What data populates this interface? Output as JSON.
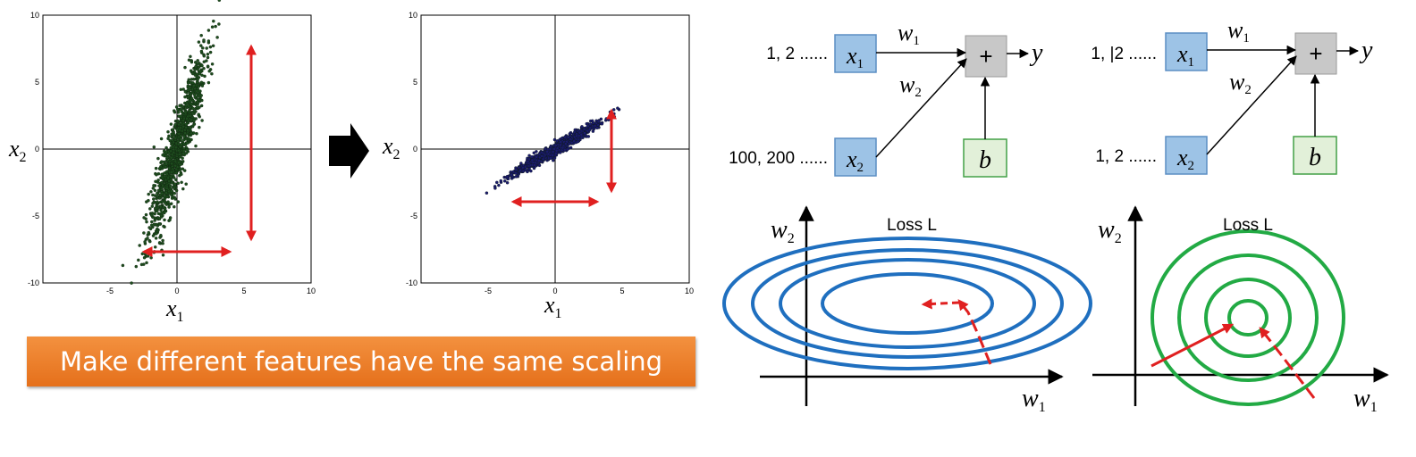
{
  "scatter_plots": [
    {
      "tick_labels": [
        "10",
        "5",
        "0",
        "-5",
        "-10",
        "-5",
        "0",
        "5",
        "10"
      ],
      "x_label": "x",
      "x_sub": "1",
      "y_label": "x",
      "y_sub": "2",
      "point_color": "#1e4d1e"
    },
    {
      "tick_labels": [
        "10",
        "5",
        "0",
        "-5",
        "-10",
        "-5",
        "0",
        "5",
        "10"
      ],
      "x_label": "x",
      "x_sub": "1",
      "y_label": "x",
      "y_sub": "2",
      "point_color": "#1a1a6e"
    }
  ],
  "arrow_between_plots": "right-arrow",
  "banner": {
    "text": "Make different features have the same scaling",
    "color": "#ef7d22"
  },
  "networks": [
    {
      "input1_values": "1, 2 ......",
      "input2_values": "100, 200 ......",
      "input1": {
        "label": "x",
        "sub": "1"
      },
      "input2": {
        "label": "x",
        "sub": "2"
      },
      "weight1": {
        "label": "w",
        "sub": "1"
      },
      "weight2": {
        "label": "w",
        "sub": "2"
      },
      "sum_symbol": "+",
      "bias": "b",
      "output": "y"
    },
    {
      "input1_values": "1, |2 ......",
      "input2_values": "1, 2 ......",
      "input1": {
        "label": "x",
        "sub": "1"
      },
      "input2": {
        "label": "x",
        "sub": "2"
      },
      "weight1": {
        "label": "w",
        "sub": "1"
      },
      "weight2": {
        "label": "w",
        "sub": "2"
      },
      "sum_symbol": "+",
      "bias": "b",
      "output": "y"
    }
  ],
  "contours": [
    {
      "title": "Loss L",
      "x_axis": {
        "label": "w",
        "sub": "1"
      },
      "y_axis": {
        "label": "w",
        "sub": "2"
      },
      "shape": "elongated ellipses",
      "color": "#1f6fbf"
    },
    {
      "title": "Loss L",
      "x_axis": {
        "label": "w",
        "sub": "1"
      },
      "y_axis": {
        "label": "w",
        "sub": "2"
      },
      "shape": "concentric circles",
      "color": "#22aa44"
    }
  ],
  "colors": {
    "arrow_red": "#e02020",
    "input_box": "#9dc3e6",
    "input_box_border": "#5b8ec4",
    "sum_box": "#c8c8c8",
    "bias_box": "#e2f0d9",
    "bias_box_border": "#43a047"
  }
}
